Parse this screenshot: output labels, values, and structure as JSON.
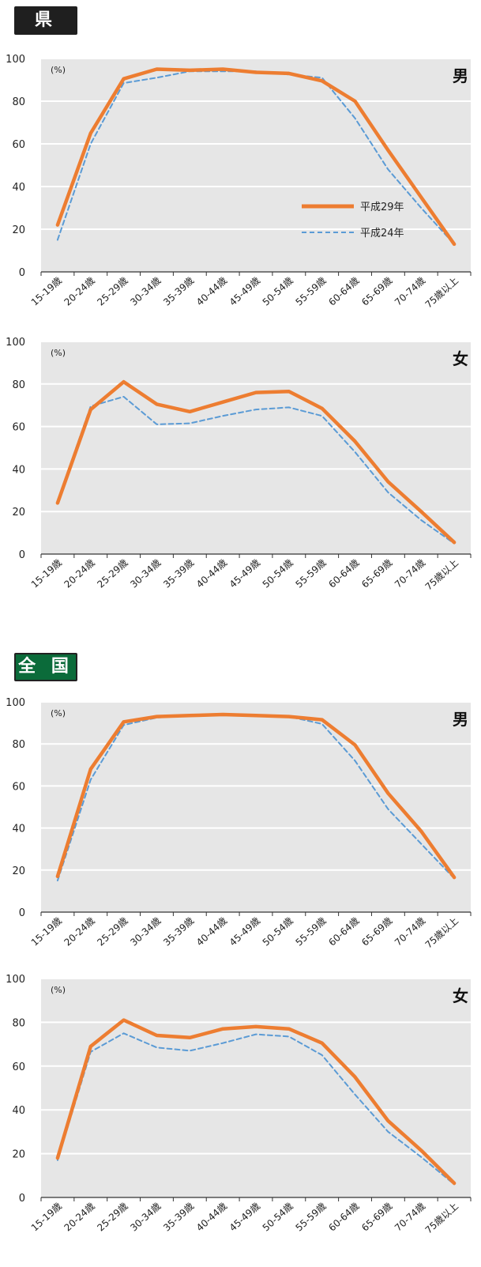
{
  "sections": [
    {
      "label": "県",
      "color": "#1f1f1f"
    },
    {
      "label": "全 国",
      "color": "#0b6b3a"
    }
  ],
  "legend": {
    "series1": "平成29年",
    "series2": "平成24年"
  },
  "chart_data": [
    {
      "type": "line",
      "region": "県",
      "panel_label": "男",
      "unit": "(%)",
      "categories": [
        "15-19歳",
        "20-24歳",
        "25-29歳",
        "30-34歳",
        "35-39歳",
        "40-44歳",
        "45-49歳",
        "50-54歳",
        "55-59歳",
        "60-64歳",
        "65-69歳",
        "70-74歳",
        "75歳以上"
      ],
      "series": [
        {
          "name": "平成29年",
          "color": "#ed7d31",
          "values": [
            22,
            65,
            90.5,
            95,
            94.5,
            95,
            93.5,
            93,
            89.5,
            80,
            57,
            35,
            13
          ]
        },
        {
          "name": "平成24年",
          "color": "#5b9bd5",
          "values": [
            15,
            60,
            88.5,
            91,
            94,
            94,
            94,
            92.5,
            91,
            72,
            48,
            30,
            13
          ]
        }
      ],
      "ylim": [
        0,
        100
      ],
      "yticks": [
        0,
        20,
        40,
        60,
        80,
        100
      ],
      "show_legend": true,
      "legend_position": "bottom-right"
    },
    {
      "type": "line",
      "region": "県",
      "panel_label": "女",
      "unit": "(%)",
      "categories": [
        "15-19歳",
        "20-24歳",
        "25-29歳",
        "30-34歳",
        "35-39歳",
        "40-44歳",
        "45-49歳",
        "50-54歳",
        "55-59歳",
        "60-64歳",
        "65-69歳",
        "70-74歳",
        "75歳以上"
      ],
      "series": [
        {
          "name": "平成29年",
          "color": "#ed7d31",
          "values": [
            24,
            68,
            81,
            70.5,
            67,
            71.5,
            76,
            76.5,
            68.5,
            53,
            34,
            20,
            5.5
          ]
        },
        {
          "name": "平成24年",
          "color": "#5b9bd5",
          "values": [
            25,
            69.5,
            74,
            61,
            61.5,
            65,
            68,
            69,
            65,
            48,
            29,
            16,
            5
          ]
        }
      ],
      "ylim": [
        0,
        100
      ],
      "yticks": [
        0,
        20,
        40,
        60,
        80,
        100
      ],
      "show_legend": false
    },
    {
      "type": "line",
      "region": "全 国",
      "panel_label": "男",
      "unit": "(%)",
      "categories": [
        "15-19歳",
        "20-24歳",
        "25-29歳",
        "30-34歳",
        "35-39歳",
        "40-44歳",
        "45-49歳",
        "50-54歳",
        "55-59歳",
        "60-64歳",
        "65-69歳",
        "70-74歳",
        "75歳以上"
      ],
      "series": [
        {
          "name": "平成29年",
          "color": "#ed7d31",
          "values": [
            17,
            68,
            90.5,
            93,
            93.5,
            94,
            93.5,
            93,
            91.5,
            79.5,
            56.5,
            38.5,
            16.5
          ]
        },
        {
          "name": "平成24年",
          "color": "#5b9bd5",
          "values": [
            15,
            63,
            89,
            92.5,
            93.5,
            94,
            93.5,
            93,
            89.5,
            72,
            49,
            32.5,
            16
          ]
        }
      ],
      "ylim": [
        0,
        100
      ],
      "yticks": [
        0,
        20,
        40,
        60,
        80,
        100
      ],
      "show_legend": false
    },
    {
      "type": "line",
      "region": "全 国",
      "panel_label": "女",
      "unit": "(%)",
      "categories": [
        "15-19歳",
        "20-24歳",
        "25-29歳",
        "30-34歳",
        "35-39歳",
        "40-44歳",
        "45-49歳",
        "50-54歳",
        "55-59歳",
        "60-64歳",
        "65-69歳",
        "70-74歳",
        "75歳以上"
      ],
      "series": [
        {
          "name": "平成29年",
          "color": "#ed7d31",
          "values": [
            18,
            69,
            81,
            74,
            73,
            77,
            78,
            77,
            70.5,
            55,
            35,
            21.5,
            6.5
          ]
        },
        {
          "name": "平成24年",
          "color": "#5b9bd5",
          "values": [
            17,
            66.5,
            75,
            68.5,
            67,
            70.5,
            74.5,
            73.5,
            65,
            47,
            30,
            18.5,
            6
          ]
        }
      ],
      "ylim": [
        0,
        100
      ],
      "yticks": [
        0,
        20,
        40,
        60,
        80,
        100
      ],
      "show_legend": false
    }
  ]
}
